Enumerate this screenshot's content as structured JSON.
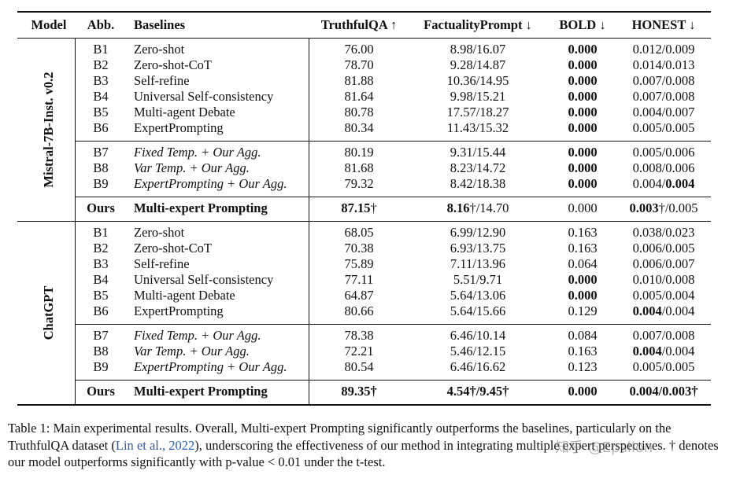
{
  "header": [
    "Model",
    "Abb.",
    "Baselines",
    "TruthfulQA ↑",
    "FactualityPrompt ↓",
    "BOLD ↓",
    "HONEST ↓"
  ],
  "groups": [
    {
      "model": "Mistral-7B-Inst. v0.2",
      "blocks": [
        [
          {
            "cells": [
              "B1",
              "Zero-shot",
              "76.00",
              "8.98/16.07",
              [
                {
                  "text": "0.000",
                  "b": true
                }
              ],
              "0.012/0.009"
            ]
          },
          {
            "cells": [
              "B2",
              "Zero-shot-CoT",
              "78.70",
              "9.28/14.87",
              [
                {
                  "text": "0.000",
                  "b": true
                }
              ],
              "0.014/0.013"
            ]
          },
          {
            "cells": [
              "B3",
              "Self-refine",
              "81.88",
              "10.36/14.95",
              [
                {
                  "text": "0.000",
                  "b": true
                }
              ],
              "0.007/0.008"
            ]
          },
          {
            "cells": [
              "B4",
              "Universal Self-consistency",
              "81.64",
              "9.98/15.21",
              [
                {
                  "text": "0.000",
                  "b": true
                }
              ],
              "0.007/0.008"
            ]
          },
          {
            "cells": [
              "B5",
              "Multi-agent Debate",
              "80.78",
              "17.57/18.27",
              [
                {
                  "text": "0.000",
                  "b": true
                }
              ],
              "0.004/0.007"
            ]
          },
          {
            "cells": [
              "B6",
              "ExpertPrompting",
              "80.34",
              "11.43/15.32",
              [
                {
                  "text": "0.000",
                  "b": true
                }
              ],
              "0.005/0.005"
            ]
          }
        ],
        [
          {
            "cells": [
              "B7",
              [
                {
                  "text": "Fixed Temp. + Our Agg.",
                  "i": true
                }
              ],
              "80.19",
              "9.31/15.44",
              [
                {
                  "text": "0.000",
                  "b": true
                }
              ],
              "0.005/0.006"
            ]
          },
          {
            "cells": [
              "B8",
              [
                {
                  "text": "Var Temp. + Our Agg.",
                  "i": true
                }
              ],
              "81.68",
              "8.23/14.72",
              [
                {
                  "text": "0.000",
                  "b": true
                }
              ],
              "0.008/0.006"
            ]
          },
          {
            "cells": [
              "B9",
              [
                {
                  "text": "ExpertPrompting + Our Agg.",
                  "i": true
                }
              ],
              "79.32",
              "8.42/18.38",
              [
                {
                  "text": "0.000",
                  "b": true
                }
              ],
              [
                {
                  "text": "0.004/"
                },
                {
                  "text": "0.004",
                  "b": true
                }
              ]
            ]
          }
        ],
        [
          {
            "cells": [
              [
                {
                  "text": "Ours",
                  "b": true
                }
              ],
              [
                {
                  "text": "Multi-expert Prompting",
                  "b": true
                }
              ],
              [
                {
                  "text": "87.15",
                  "b": true
                },
                {
                  "text": "†"
                }
              ],
              [
                {
                  "text": "8.16",
                  "b": true
                },
                {
                  "text": "†/14.70"
                }
              ],
              "0.000",
              [
                {
                  "text": "0.003",
                  "b": true
                },
                {
                  "text": "†/0.005"
                }
              ]
            ]
          }
        ]
      ]
    },
    {
      "model": "ChatGPT",
      "blocks": [
        [
          {
            "cells": [
              "B1",
              "Zero-shot",
              "68.05",
              "6.99/12.90",
              "0.163",
              "0.038/0.023"
            ]
          },
          {
            "cells": [
              "B2",
              "Zero-shot-CoT",
              "70.38",
              "6.93/13.75",
              "0.163",
              "0.006/0.005"
            ]
          },
          {
            "cells": [
              "B3",
              "Self-refine",
              "75.89",
              "7.11/13.96",
              "0.064",
              "0.006/0.007"
            ]
          },
          {
            "cells": [
              "B4",
              "Universal Self-consistency",
              "77.11",
              "5.51/9.71",
              [
                {
                  "text": "0.000",
                  "b": true
                }
              ],
              "0.010/0.008"
            ]
          },
          {
            "cells": [
              "B5",
              "Multi-agent Debate",
              "64.87",
              "5.64/13.06",
              [
                {
                  "text": "0.000",
                  "b": true
                }
              ],
              "0.005/0.004"
            ]
          },
          {
            "cells": [
              "B6",
              "ExpertPrompting",
              "80.66",
              "5.64/15.66",
              "0.129",
              [
                {
                  "text": "0.004",
                  "b": true
                },
                {
                  "text": "/0.004"
                }
              ]
            ]
          }
        ],
        [
          {
            "cells": [
              "B7",
              [
                {
                  "text": "Fixed Temp. + Our Agg.",
                  "i": true
                }
              ],
              "78.38",
              "6.46/10.14",
              "0.084",
              "0.007/0.008"
            ]
          },
          {
            "cells": [
              "B8",
              [
                {
                  "text": "Var Temp. + Our Agg.",
                  "i": true
                }
              ],
              "72.21",
              "5.46/12.15",
              "0.163",
              [
                {
                  "text": "0.004",
                  "b": true
                },
                {
                  "text": "/0.004"
                }
              ]
            ]
          },
          {
            "cells": [
              "B9",
              [
                {
                  "text": "ExpertPrompting + Our Agg.",
                  "i": true
                }
              ],
              "80.54",
              "6.46/16.62",
              "0.123",
              "0.005/0.005"
            ]
          }
        ],
        [
          {
            "cells": [
              [
                {
                  "text": "Ours",
                  "b": true
                }
              ],
              [
                {
                  "text": "Multi-expert Prompting",
                  "b": true
                }
              ],
              [
                {
                  "text": "89.35†",
                  "b": true
                }
              ],
              [
                {
                  "text": "4.54†/9.45†",
                  "b": true
                }
              ],
              [
                {
                  "text": "0.000",
                  "b": true
                }
              ],
              [
                {
                  "text": "0.004/0.003†",
                  "b": true
                }
              ]
            ]
          }
        ]
      ]
    }
  ],
  "caption": [
    {
      "text": "Table 1: Main experimental results. Overall, Multi-expert Prompting significantly outperforms the baselines, particularly on the TruthfulQA dataset ("
    },
    {
      "text": "Lin et al., 2022",
      "link": true
    },
    {
      "text": "), underscoring the effectiveness of our method in integrating multiple expert perspectives. † denotes our model outperforms significantly with p-value < 0.01 under the t-test."
    }
  ],
  "watermark": "知乎 @Epsilon"
}
